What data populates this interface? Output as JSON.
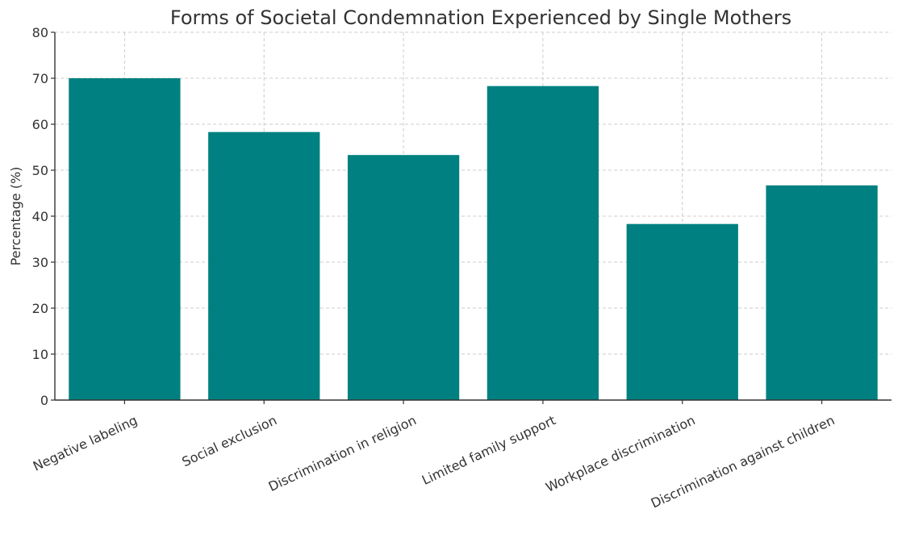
{
  "chart_data": {
    "type": "bar",
    "title": "Forms of Societal Condemnation Experienced by Single Mothers",
    "xlabel": "",
    "ylabel": "Percentage (%)",
    "ylim": [
      0,
      80
    ],
    "yticks": [
      0,
      10,
      20,
      30,
      40,
      50,
      60,
      70,
      80
    ],
    "grid": true,
    "bar_color": "#008080",
    "categories": [
      "Negative labeling",
      "Social exclusion",
      "Discrimination in religion",
      "Limited family support",
      "Workplace discrimination",
      "Discrimination against children"
    ],
    "values": [
      70,
      58.3,
      53.3,
      68.3,
      38.3,
      46.7
    ]
  }
}
